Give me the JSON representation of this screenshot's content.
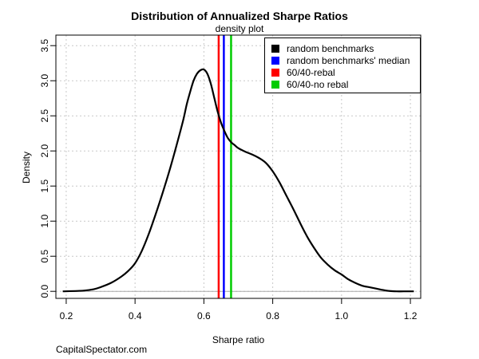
{
  "chart_data": {
    "type": "line",
    "title": "Distribution of Annualized Sharpe Ratios",
    "subtitle": "density plot",
    "xlabel": "Sharpe ratio",
    "ylabel": "Density",
    "xlim": [
      0.17,
      1.23
    ],
    "ylim": [
      -0.1,
      3.65
    ],
    "xticks": [
      "0.2",
      "0.4",
      "0.6",
      "0.8",
      "1.0",
      "1.2"
    ],
    "yticks": [
      "0.0",
      "0.5",
      "1.0",
      "1.5",
      "2.0",
      "2.5",
      "3.0",
      "3.5"
    ],
    "grid": true,
    "legend_position": "top-right",
    "series": [
      {
        "name": "random benchmarks",
        "color": "#000000",
        "x": [
          0.19,
          0.25,
          0.28,
          0.3,
          0.33,
          0.36,
          0.38,
          0.4,
          0.42,
          0.44,
          0.46,
          0.48,
          0.5,
          0.52,
          0.54,
          0.55,
          0.56,
          0.57,
          0.58,
          0.59,
          0.6,
          0.61,
          0.62,
          0.63,
          0.64,
          0.65,
          0.66,
          0.67,
          0.68,
          0.69,
          0.7,
          0.72,
          0.74,
          0.76,
          0.78,
          0.8,
          0.82,
          0.84,
          0.86,
          0.88,
          0.9,
          0.92,
          0.94,
          0.96,
          0.98,
          1.0,
          1.02,
          1.04,
          1.06,
          1.08,
          1.1,
          1.12,
          1.14,
          1.16,
          1.18,
          1.21
        ],
        "y": [
          0.0,
          0.01,
          0.03,
          0.06,
          0.12,
          0.21,
          0.29,
          0.4,
          0.58,
          0.82,
          1.1,
          1.4,
          1.72,
          2.07,
          2.44,
          2.66,
          2.84,
          3.0,
          3.1,
          3.15,
          3.16,
          3.1,
          2.96,
          2.76,
          2.56,
          2.4,
          2.28,
          2.18,
          2.12,
          2.08,
          2.04,
          1.99,
          1.95,
          1.9,
          1.83,
          1.71,
          1.55,
          1.36,
          1.17,
          0.97,
          0.78,
          0.62,
          0.48,
          0.38,
          0.3,
          0.24,
          0.17,
          0.12,
          0.08,
          0.06,
          0.04,
          0.02,
          0.005,
          0.0,
          0.0,
          0.0
        ]
      }
    ],
    "vlines": [
      {
        "name": "random benchmarks' median",
        "color": "#0000ff",
        "x": 0.658
      },
      {
        "name": "60/40-rebal",
        "color": "#ff0000",
        "x": 0.643
      },
      {
        "name": "60/40-no rebal",
        "color": "#00cc00",
        "x": 0.679
      }
    ],
    "legend": [
      {
        "label": "random benchmarks",
        "color": "#000000"
      },
      {
        "label": "random benchmarks' median",
        "color": "#0000ff"
      },
      {
        "label": "60/40-rebal",
        "color": "#ff0000"
      },
      {
        "label": "60/40-no rebal",
        "color": "#00cc00"
      }
    ]
  },
  "source_note": "CapitalSpectator.com"
}
